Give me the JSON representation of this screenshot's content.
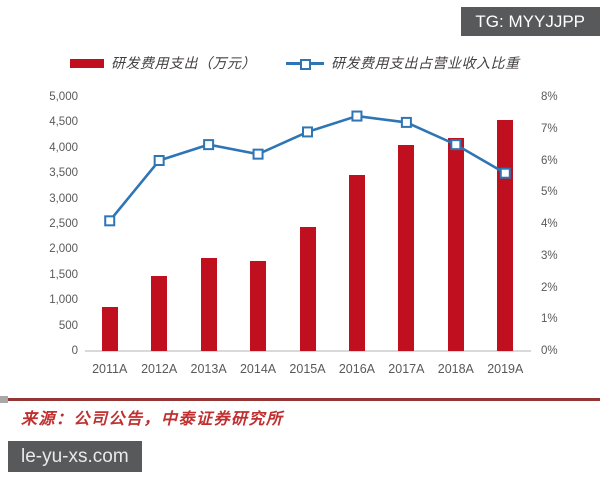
{
  "header": {
    "badge_text": "TG: MYYJJPP",
    "badge_bg": "#58595B"
  },
  "legend": {
    "bar_label": "研发费用支出（万元）",
    "line_label": "研发费用支出占营业收入比重"
  },
  "chart_data": {
    "type": "bar",
    "subtype": "bar+line combo, dual axis",
    "categories": [
      "2011A",
      "2012A",
      "2013A",
      "2014A",
      "2015A",
      "2016A",
      "2017A",
      "2018A",
      "2019A"
    ],
    "series": [
      {
        "name": "研发费用支出（万元）",
        "type": "bar",
        "axis": "left",
        "color": "#C00F1E",
        "values": [
          870,
          1480,
          1830,
          1770,
          2450,
          3460,
          4050,
          4200,
          4550
        ]
      },
      {
        "name": "研发费用支出占营业收入比重",
        "type": "line",
        "axis": "right",
        "color": "#2E75B6",
        "marker": "open-square",
        "values": [
          4.1,
          6.0,
          6.5,
          6.2,
          6.9,
          7.4,
          7.2,
          6.5,
          5.6
        ]
      }
    ],
    "left_axis": {
      "min": 0,
      "max": 5000,
      "tick_labels": [
        "0",
        "500",
        "1,000",
        "1,500",
        "2,000",
        "2,500",
        "3,000",
        "3,500",
        "4,000",
        "4,500",
        "5,000"
      ]
    },
    "right_axis": {
      "min": 0,
      "max": 8,
      "tick_labels": [
        "0%",
        "1%",
        "2%",
        "3%",
        "4%",
        "5%",
        "6%",
        "7%",
        "8%"
      ]
    },
    "grid": false,
    "legend_position": "top"
  },
  "colors": {
    "bar_red": "#C00F1E",
    "line_blue": "#2E75B6",
    "axis_text": "#595959",
    "axis_line": "#D9D9D9",
    "divider_red": "#943634",
    "source_red": "#C03030"
  },
  "footer": {
    "source_text": "来源：公司公告，中泰证券研究所",
    "watermark": "le-yu-xs.com"
  }
}
